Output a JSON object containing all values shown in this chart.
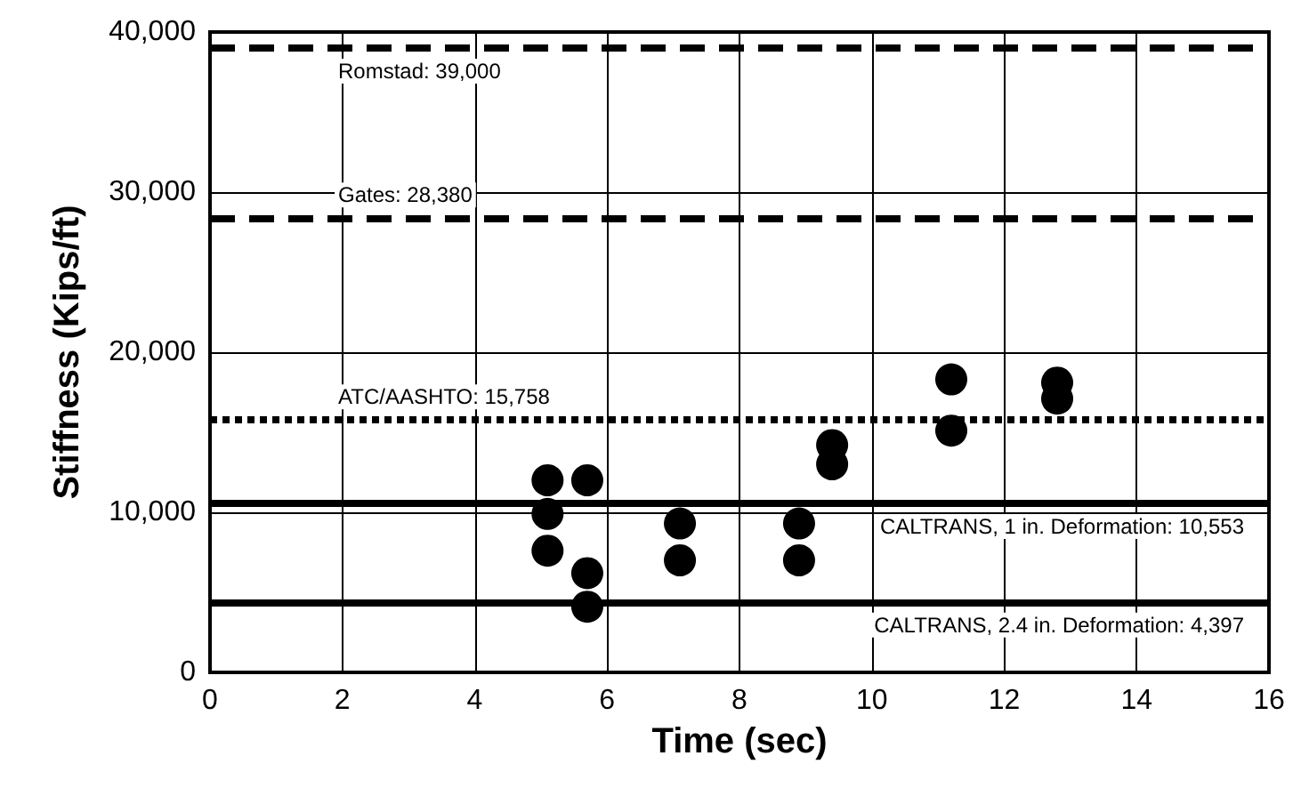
{
  "chart_data": {
    "type": "scatter",
    "xlabel": "Time (sec)",
    "ylabel": "Stiffness (Kips/ft)",
    "x": [
      5.1,
      5.1,
      5.1,
      5.7,
      5.7,
      5.7,
      7.1,
      7.1,
      8.9,
      8.9,
      9.4,
      9.4,
      11.2,
      11.2,
      12.8,
      12.8
    ],
    "series": [
      {
        "color": "#000000",
        "values": [
          12000,
          9900,
          7600,
          12000,
          6200,
          4100,
          9300,
          7000,
          9300,
          7000,
          14200,
          13000,
          18300,
          15100,
          18100,
          17100
        ]
      }
    ],
    "xlim": [
      0,
      16
    ],
    "xticks": [
      0,
      2,
      4,
      6,
      8,
      10,
      12,
      14,
      16
    ],
    "ylim": [
      0,
      40000
    ],
    "yticks": [
      {
        "value": 0,
        "label": "0"
      },
      {
        "value": 10000,
        "label": "10,000"
      },
      {
        "value": 20000,
        "label": "20,000"
      },
      {
        "value": 30000,
        "label": "30,000"
      },
      {
        "value": 40000,
        "label": "40,000"
      }
    ],
    "grid": true,
    "marker": "circle",
    "ref_lines": [
      {
        "axis": "y",
        "value": 39000,
        "label": "Romstad: 39,000",
        "color": "#000000",
        "line_style": "dashed"
      },
      {
        "axis": "y",
        "value": 28380,
        "label": "Gates: 28,380",
        "color": "#000000",
        "line_style": "dashed"
      },
      {
        "axis": "y",
        "value": 15758,
        "label": "ATC/AASHTO: 15,758",
        "color": "#000000",
        "line_style": "dotted"
      },
      {
        "axis": "y",
        "value": 10553,
        "label": "CALTRANS, 1 in. Deformation: 10,553",
        "color": "#000000",
        "line_style": "solid"
      },
      {
        "axis": "y",
        "value": 4397,
        "label": "CALTRANS, 2.4 in. Deformation: 4,397",
        "color": "#000000",
        "line_style": "solid"
      }
    ]
  }
}
